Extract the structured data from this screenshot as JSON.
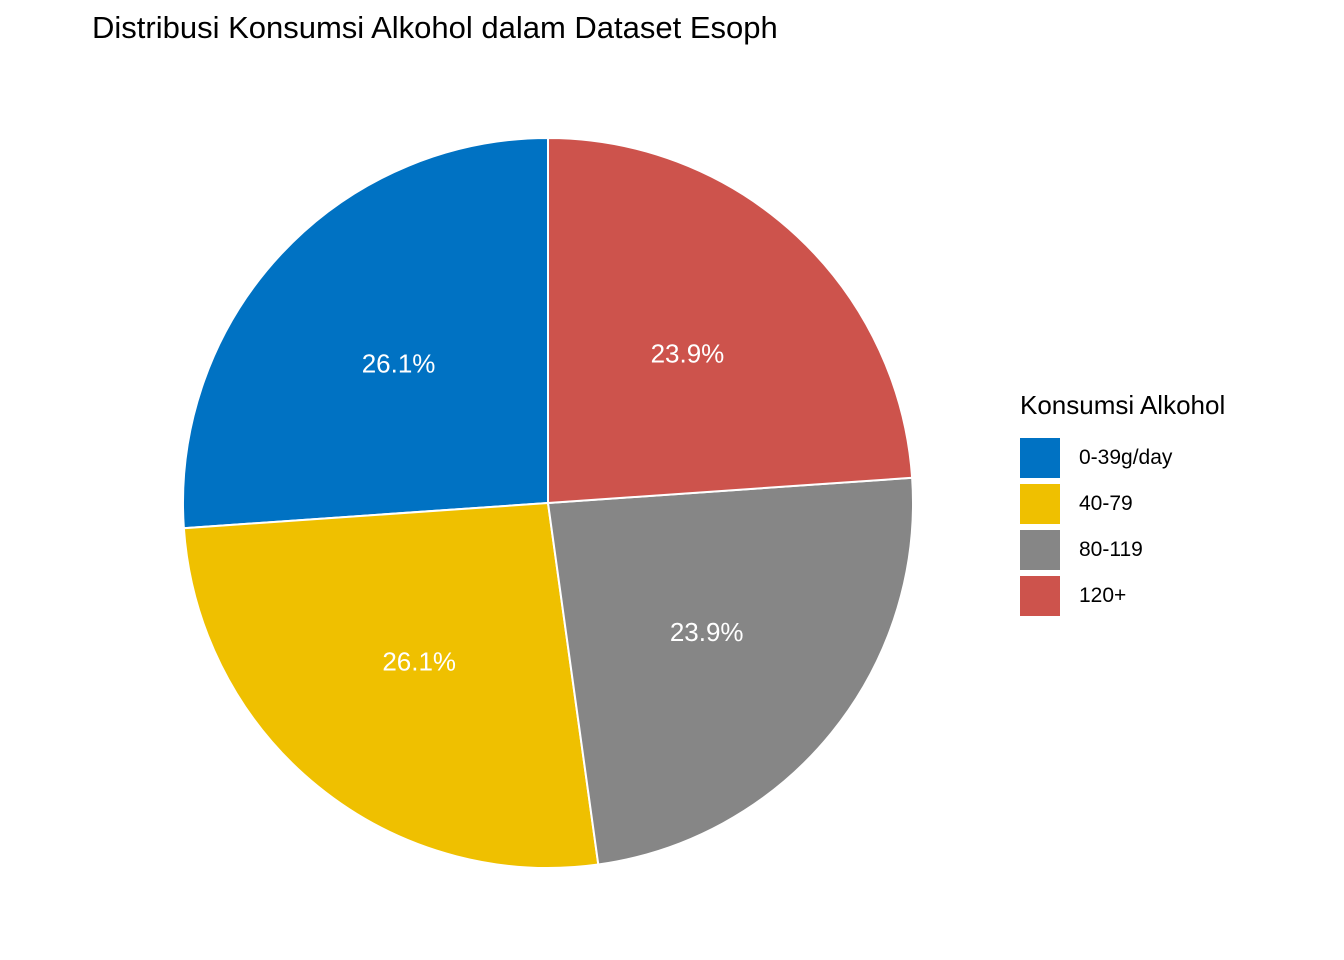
{
  "chart_data": {
    "type": "pie",
    "title": "Distribusi Konsumsi Alkohol dalam Dataset Esoph",
    "legend_title": "Konsumsi Alkohol",
    "legend_position": "right",
    "categories": [
      "0-39g/day",
      "40-79",
      "80-119",
      "120+"
    ],
    "values": [
      26.1,
      26.1,
      23.9,
      23.9
    ],
    "labels": [
      "26.1%",
      "26.1%",
      "23.9%",
      "23.9%"
    ],
    "colors": [
      "#0072C3",
      "#EFC000",
      "#868686",
      "#CD534C"
    ],
    "start_angle": "12 o'clock",
    "direction": "counter-clockwise"
  }
}
